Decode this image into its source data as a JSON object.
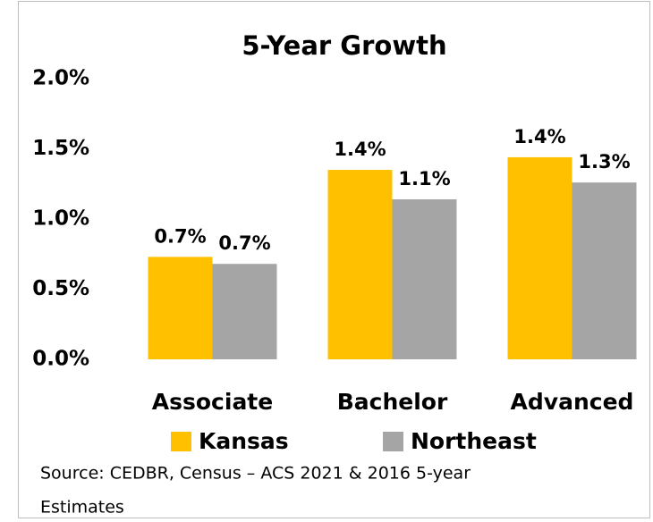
{
  "chart_data": {
    "type": "bar",
    "title": "5-Year Growth",
    "categories": [
      "Associate",
      "Bachelor",
      "Advanced"
    ],
    "series": [
      {
        "name": "Kansas",
        "color": "#ffc000",
        "values": [
          0.73,
          1.35,
          1.44
        ],
        "value_labels": [
          "0.7%",
          "1.4%",
          "1.4%"
        ]
      },
      {
        "name": "Northeast",
        "color": "#a5a5a5",
        "values": [
          0.68,
          1.14,
          1.26
        ],
        "value_labels": [
          "0.7%",
          "1.1%",
          "1.3%"
        ]
      }
    ],
    "ylim": [
      0,
      2
    ],
    "yticks": [
      {
        "value": 0,
        "label": "0.0%"
      },
      {
        "value": 0.5,
        "label": "0.5%"
      },
      {
        "value": 1,
        "label": "1.0%"
      },
      {
        "value": 1.5,
        "label": "1.5%"
      },
      {
        "value": 2,
        "label": "2.0%"
      }
    ],
    "grid": false,
    "legend": "bottom",
    "source": [
      "Source: CEDBR, Census – ACS 2021 & 2016 5-year",
      "Estimates"
    ]
  }
}
